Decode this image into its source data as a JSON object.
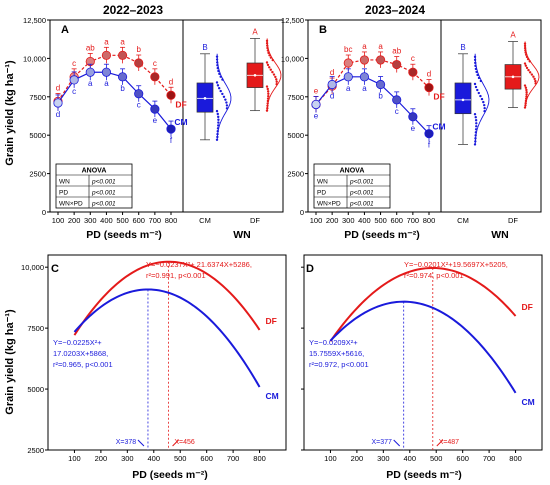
{
  "colors": {
    "cm": "#1a1adb",
    "df": "#e41a1a",
    "cm_light": "#a9b6e6",
    "df_light": "#f2a0a0",
    "axis": "#000000"
  },
  "chart_data": [
    {
      "id": "A",
      "type": "line",
      "title": "2022–2023",
      "panel_letter": "A",
      "xlabel": "PD (seeds m⁻²)",
      "ylabel": "Grain yield (kg ha⁻¹)",
      "ylim": [
        0,
        12500
      ],
      "yticks": [
        "0",
        "2500",
        "5000",
        "7500",
        "10,000",
        "12,500"
      ],
      "x": [
        100,
        200,
        300,
        400,
        500,
        600,
        700,
        800
      ],
      "series": [
        {
          "name": "DF",
          "values": [
            7200,
            8800,
            9800,
            10200,
            10200,
            9700,
            8800,
            7600
          ],
          "letters": [
            "d",
            "c",
            "ab",
            "a",
            "a",
            "b",
            "c",
            "d"
          ]
        },
        {
          "name": "CM",
          "values": [
            7100,
            8600,
            9100,
            9100,
            8800,
            7700,
            6700,
            5400
          ],
          "letters": [
            "d",
            "c",
            "a",
            "a",
            "b",
            "c",
            "e",
            "f"
          ]
        }
      ],
      "anova": {
        "title": "ANOVA",
        "rows": [
          [
            "WN",
            "p<0.001"
          ],
          [
            "PD",
            "p<0.001"
          ],
          [
            "WN×PD",
            "p<0.001"
          ]
        ]
      },
      "box": {
        "xlabel": "WN",
        "categories": [
          "CM",
          "DF"
        ],
        "letters": [
          "B",
          "A"
        ],
        "q1": [
          6500,
          8100
        ],
        "median": [
          7400,
          8900
        ],
        "q3": [
          8400,
          9700
        ],
        "min": [
          4700,
          6600
        ],
        "max": [
          10300,
          11300
        ]
      }
    },
    {
      "id": "B",
      "type": "line",
      "title": "2023–2024",
      "panel_letter": "B",
      "xlabel": "PD (seeds m⁻²)",
      "ylabel": "Grain yield (kg ha⁻¹)",
      "ylim": [
        0,
        12500
      ],
      "yticks": [
        "0",
        "2500",
        "5000",
        "7500",
        "10,000",
        "12,500"
      ],
      "x": [
        100,
        200,
        300,
        400,
        500,
        600,
        700,
        800
      ],
      "series": [
        {
          "name": "DF",
          "values": [
            7000,
            8200,
            9700,
            9900,
            9900,
            9600,
            9100,
            8100
          ],
          "letters": [
            "e",
            "d",
            "bc",
            "a",
            "a",
            "ab",
            "c",
            "d"
          ]
        },
        {
          "name": "CM",
          "values": [
            7000,
            8300,
            8800,
            8800,
            8300,
            7300,
            6200,
            5100
          ],
          "letters": [
            "e",
            "d",
            "a",
            "a",
            "b",
            "c",
            "e",
            "f"
          ]
        }
      ],
      "anova": {
        "title": "ANOVA",
        "rows": [
          [
            "WN",
            "p<0.001"
          ],
          [
            "PD",
            "p<0.001"
          ],
          [
            "WN×PD",
            "p<0.001"
          ]
        ]
      },
      "box": {
        "xlabel": "WN",
        "categories": [
          "CM",
          "DF"
        ],
        "letters": [
          "B",
          "A"
        ],
        "q1": [
          6400,
          8000
        ],
        "median": [
          7300,
          8800
        ],
        "q3": [
          8400,
          9600
        ],
        "min": [
          4400,
          6800
        ],
        "max": [
          10300,
          11100
        ]
      }
    },
    {
      "id": "C",
      "type": "line",
      "panel_letter": "C",
      "xlabel": "PD (seeds m⁻²)",
      "ylabel": "Grain yield (kg ha⁻¹)",
      "ylim": [
        2500,
        10500
      ],
      "yticks": [
        "2500",
        "5000",
        "7500",
        "10,000"
      ],
      "xlim": [
        0,
        900
      ],
      "xticks": [
        "100",
        "200",
        "300",
        "400",
        "500",
        "600",
        "700",
        "800"
      ],
      "series": [
        {
          "name": "DF",
          "a": -0.0237,
          "b": 21.6374,
          "c": 5286,
          "optimum": 456,
          "equation": [
            "Y=−0.0237X²+ 21.6374X+5286,",
            "r²=0.991, p<0.001"
          ],
          "opt_label": "X=456"
        },
        {
          "name": "CM",
          "a": -0.0225,
          "b": 17.0203,
          "c": 5868,
          "optimum": 378,
          "equation": [
            "Y=−0.0225X²+",
            "17.0203X+5868,",
            "r²=0.965, p<0.001"
          ],
          "opt_label": "X=378"
        }
      ]
    },
    {
      "id": "D",
      "type": "line",
      "panel_letter": "D",
      "xlabel": "PD (seeds m⁻²)",
      "ylim": [
        2500,
        10500
      ],
      "yticks": [
        "2500",
        "5000",
        "7500",
        "10,000"
      ],
      "xlim": [
        0,
        900
      ],
      "xticks": [
        "100",
        "200",
        "300",
        "400",
        "500",
        "600",
        "700",
        "800"
      ],
      "series": [
        {
          "name": "DF",
          "a": -0.0201,
          "b": 19.5697,
          "c": 5205,
          "optimum": 487,
          "equation": [
            "Y=−0.0201X²+19.5697X+5205,",
            "r²=0.974, p<0.001"
          ],
          "opt_label": "X=487"
        },
        {
          "name": "CM",
          "a": -0.0209,
          "b": 15.7559,
          "c": 5616,
          "optimum": 377,
          "equation": [
            "Y=−0.0209X²+",
            "15.7559X+5616,",
            "r²=0.972, p<0.001"
          ],
          "opt_label": "X=377"
        }
      ]
    }
  ]
}
